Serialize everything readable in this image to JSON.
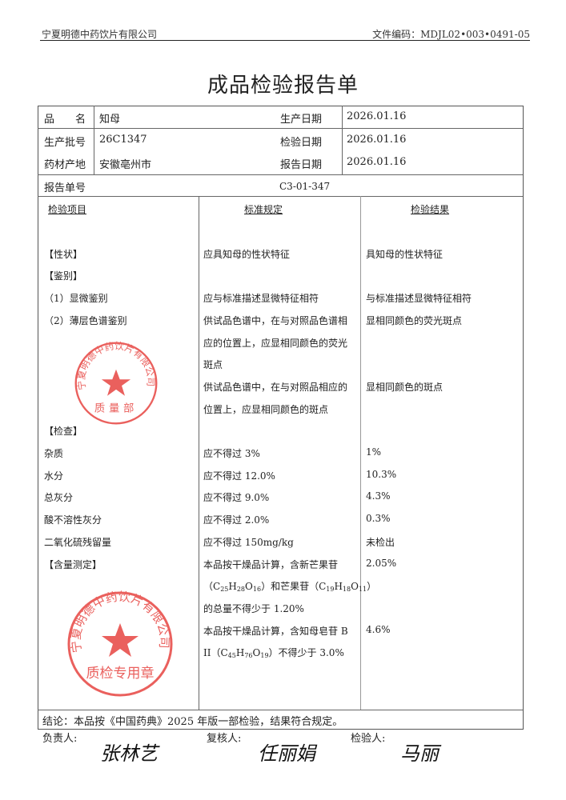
{
  "header": {
    "company": "宁夏明德中药饮片有限公司",
    "doc_code": "文件编码：MDJL02•003•0491-05"
  },
  "title": "成品检验报告单",
  "info": {
    "name_label": "品　　名",
    "name_value": "知母",
    "batch_label": "生产批号",
    "batch_value": "26C1347",
    "origin_label": "药材产地",
    "origin_value": "安徽亳州市",
    "prod_date_label": "生产日期",
    "prod_date_value": "2026.01.16",
    "test_date_label": "检验日期",
    "test_date_value": "2026.01.16",
    "report_date_label": "报告日期",
    "report_date_value": "2026.01.16",
    "report_no_label": "报告单号",
    "report_no_value": "C3-01-347"
  },
  "columns": {
    "item": "检验项目",
    "standard": "标准规定",
    "result": "检验结果"
  },
  "lines": [
    {
      "item": "",
      "standard": "",
      "result": ""
    },
    {
      "item": "【性状】",
      "standard": "应具知母的性状特征",
      "result": "具知母的性状特征"
    },
    {
      "item": "【鉴别】",
      "standard": "",
      "result": ""
    },
    {
      "item": "（1）显微鉴别",
      "standard": "应与标准描述显微特征相符",
      "result": "与标准描述显微特征相符"
    },
    {
      "item": "（2）薄层色谱鉴别",
      "standard": "供试品色谱中，在与对照品色谱相",
      "result": "显相同颜色的荧光斑点"
    },
    {
      "item": "",
      "standard": "应的位置上，应显相同颜色的荧光",
      "result": ""
    },
    {
      "item": "",
      "standard": "斑点",
      "result": ""
    },
    {
      "item": "",
      "standard": "供试品色谱中，在与对照品相应的",
      "result": "显相同颜色的斑点"
    },
    {
      "item": "",
      "standard": "位置上，应显相同颜色的斑点",
      "result": ""
    },
    {
      "item": "【检查】",
      "standard": "",
      "result": ""
    },
    {
      "item": "杂质",
      "standard": "应不得过 3%",
      "result": "1%"
    },
    {
      "item": "水分",
      "standard": "应不得过 12.0%",
      "result": "10.3%"
    },
    {
      "item": "总灰分",
      "standard": "应不得过 9.0%",
      "result": "4.3%"
    },
    {
      "item": "酸不溶性灰分",
      "standard": "应不得过 2.0%",
      "result": "0.3%"
    },
    {
      "item": "二氧化硫残留量",
      "standard": "应不得过 150mg/kg",
      "result": "未检出"
    },
    {
      "item": "【含量测定】",
      "standard": "本品按干燥品计算，含新芒果苷",
      "result": "2.05%"
    },
    {
      "item": "",
      "standard_parts": [
        [
          "（C",
          ""
        ],
        [
          "25",
          "s"
        ],
        [
          "H",
          ""
        ],
        [
          "28",
          "s"
        ],
        [
          "O",
          ""
        ],
        [
          "16",
          "s"
        ],
        [
          "）和芒果苷（C",
          ""
        ],
        [
          "19",
          "s"
        ],
        [
          "H",
          ""
        ],
        [
          "18",
          "s"
        ],
        [
          "O",
          ""
        ],
        [
          "11",
          "s"
        ],
        [
          "）",
          ""
        ]
      ],
      "result": ""
    },
    {
      "item": "",
      "standard": "的总量不得少于 1.20%",
      "result": ""
    },
    {
      "item": "",
      "standard": "本品按干燥品计算，含知母皂苷 B",
      "result": "4.6%"
    },
    {
      "item": "",
      "standard_parts": [
        [
          "II（C",
          ""
        ],
        [
          "45",
          "s"
        ],
        [
          "H",
          ""
        ],
        [
          "76",
          "s"
        ],
        [
          "O",
          ""
        ],
        [
          "19",
          "s"
        ],
        [
          "）不得少于 3.0%",
          ""
        ]
      ],
      "result": ""
    }
  ],
  "conclusion": "结论：本品按《中国药典》2025 年版一部检验，结果符合规定。",
  "signatures": {
    "responsible_label": "负责人:",
    "responsible_sig": "张林艺",
    "reviewer_label": "复核人:",
    "reviewer_sig": "任丽娟",
    "inspector_label": "检验人:",
    "inspector_sig": "马丽"
  },
  "stamps": {
    "top_ring": "宁夏明德中药饮片有限公司",
    "top_center": "质量部",
    "bottom_ring": "宁夏明德中药饮片有限公司",
    "bottom_center": "质检专用章",
    "color": "#e53935"
  }
}
